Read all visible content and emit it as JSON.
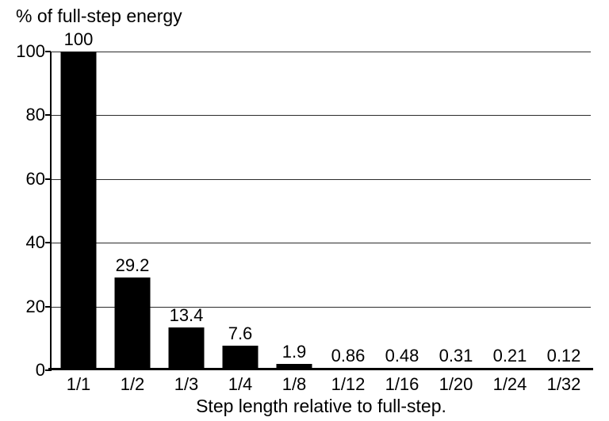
{
  "chart_data": {
    "type": "bar",
    "title": "% of full-step energy",
    "xlabel": "Step length relative to full-step.",
    "ylabel": "% of full-step energy",
    "categories": [
      "1/1",
      "1/2",
      "1/3",
      "1/4",
      "1/8",
      "1/12",
      "1/16",
      "1/20",
      "1/24",
      "1/32"
    ],
    "values": [
      100,
      29.2,
      13.4,
      7.6,
      1.9,
      0.86,
      0.48,
      0.31,
      0.21,
      0.12
    ],
    "value_labels": [
      "100",
      "29.2",
      "13.4",
      "7.6",
      "1.9",
      "0.86",
      "0.48",
      "0.31",
      "0.21",
      "0.12"
    ],
    "yticks": [
      0,
      20,
      40,
      60,
      80,
      100
    ],
    "ytick_labels": [
      "0",
      "20",
      "40",
      "60",
      "80",
      "100"
    ],
    "ylim": [
      0,
      100
    ],
    "grid": true,
    "legend": "none",
    "bar_color": "#000000",
    "background_color": "#ffffff",
    "grid_color": "#2b2b2b"
  }
}
